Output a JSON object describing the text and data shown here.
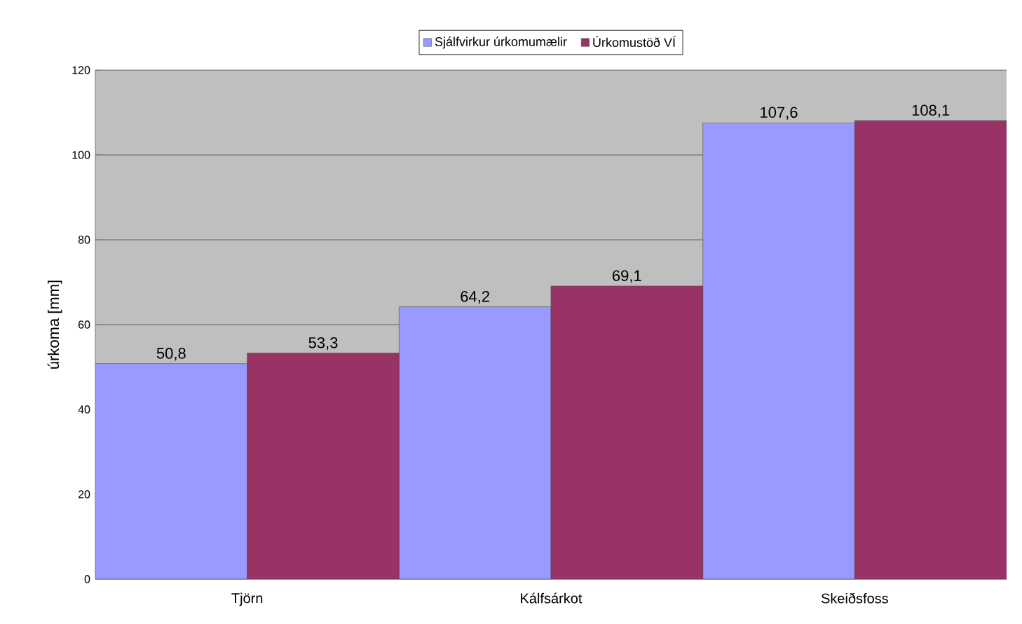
{
  "chart_data": {
    "type": "bar",
    "categories": [
      "Tjörn",
      "Kálfsárkot",
      "Skeiðsfoss"
    ],
    "ylabel": "úrkoma  [mm]",
    "series": [
      {
        "name": "Sjálfvirkur úrkomumælir",
        "color": "#9999ff",
        "values": [
          50.8,
          64.2,
          107.6
        ],
        "value_labels": [
          "50,8",
          "64,2",
          "107,6"
        ]
      },
      {
        "name": "Úrkomustöð VÍ",
        "color": "#993366",
        "values": [
          53.3,
          69.1,
          108.1
        ],
        "value_labels": [
          "53,3",
          "69,1",
          "108,1"
        ]
      }
    ],
    "ylim": [
      0,
      120
    ],
    "yticks": [
      0,
      20,
      40,
      60,
      80,
      100,
      120
    ],
    "grid": "y",
    "legend": "top"
  }
}
